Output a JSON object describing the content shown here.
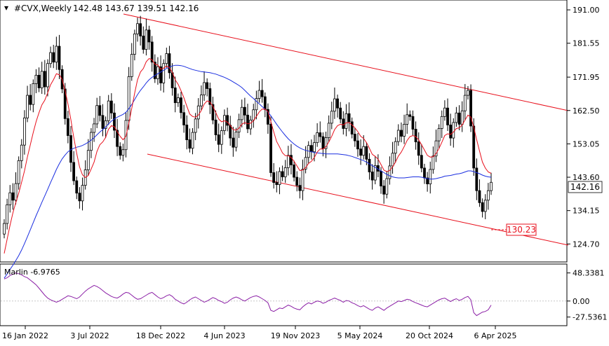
{
  "header": {
    "symbol": "#CVX,Weekly",
    "ohlc": "142.48 143.67 139.51 142.16"
  },
  "indicator": {
    "label": "Marlin -6.9765",
    "levels": [
      "48.3381",
      "0.00",
      "-27.5361"
    ]
  },
  "price_axis": {
    "ticks": [
      "191.00",
      "181.55",
      "171.95",
      "162.50",
      "153.05",
      "143.60",
      "134.15",
      "124.70"
    ],
    "current_price": "142.16",
    "target_label": "130.23"
  },
  "time_axis": {
    "ticks": [
      "16 Jan 2022",
      "3 Jul 2022",
      "18 Dec 2022",
      "4 Jun 2023",
      "19 Nov 2023",
      "5 May 2024",
      "20 Oct 2024",
      "6 Apr 2025"
    ]
  },
  "colors": {
    "candles": "#000000",
    "ma_fast": "#e8101c",
    "ma_slow": "#1a2ee0",
    "channel": "#e8101c",
    "oscillator": "#8b1fa6",
    "grid_line": "#c8c8c8"
  },
  "chart_data": {
    "type": "candlestick",
    "title": "#CVX,Weekly",
    "ylim": [
      120,
      193
    ],
    "oscillator_ylim": [
      -40,
      60
    ],
    "close": [
      130.5,
      135.8,
      139.2,
      137.1,
      141.8,
      148.3,
      152.7,
      160.4,
      166.8,
      164.2,
      170.1,
      172.5,
      168.9,
      173.6,
      169.2,
      175.8,
      178.9,
      176.2,
      180.7,
      174.1,
      168.6,
      160.2,
      155.4,
      147.8,
      142.6,
      139.1,
      136.9,
      141.3,
      145.7,
      151.2,
      156.3,
      158.7,
      163.9,
      161.1,
      157.4,
      159.6,
      165.2,
      161.8,
      156.9,
      152.3,
      149.8,
      151.4,
      159.7,
      172.1,
      178.4,
      184.2,
      187.1,
      183.6,
      179.8,
      185.3,
      181.9,
      176.2,
      171.5,
      174.9,
      170.3,
      175.8,
      178.6,
      173.2,
      168.9,
      164.7,
      166.1,
      161.9,
      158.4,
      154.2,
      151.8,
      156.3,
      160.1,
      163.8,
      166.9,
      170.4,
      168.7,
      164.2,
      159.8,
      155.6,
      152.9,
      156.8,
      161.1,
      158.3,
      154.7,
      152.1,
      156.4,
      159.9,
      163.4,
      161.2,
      157.3,
      159.8,
      162.7,
      165.9,
      168.2,
      166.4,
      162.8,
      158.6,
      144.9,
      142.1,
      141.5,
      145.2,
      143.7,
      146.3,
      149.8,
      147.1,
      143.6,
      141.3,
      139.8,
      145.9,
      149.2,
      152.6,
      150.8,
      153.4,
      156.2,
      155.1,
      151.7,
      154.8,
      158.9,
      162.3,
      165.8,
      163.2,
      160.1,
      157.4,
      161.6,
      159.3,
      155.8,
      153.9,
      151.6,
      149.8,
      152.3,
      148.7,
      145.1,
      142.8,
      146.9,
      145.3,
      141.1,
      138.8,
      143.2,
      146.8,
      150.4,
      153.7,
      156.9,
      155.2,
      158.6,
      161.3,
      160.8,
      157.2,
      153.6,
      149.8,
      146.2,
      143.4,
      141.7,
      145.8,
      149.6,
      153.9,
      157.4,
      160.8,
      163.2,
      158.4,
      154.7,
      159.1,
      161.8,
      158.6,
      162.4,
      166.8,
      168.2,
      158.1,
      146.2,
      139.8,
      136.4,
      133.9,
      137.1,
      139.8,
      142.16
    ],
    "ma_fast": [
      122,
      126,
      130,
      133.5,
      136.4,
      139.1,
      142.2,
      145.4,
      149.3,
      152.8,
      156.2,
      159.3,
      161.9,
      164.1,
      165.4,
      167.5,
      169.8,
      171.2,
      172.9,
      172.6,
      171.3,
      168.1,
      164.3,
      159.9,
      154.9,
      150.4,
      146.5,
      144.3,
      143.5,
      144.1,
      145.9,
      147.9,
      150.9,
      152.8,
      153.6,
      154.9,
      157.2,
      158.2,
      157.9,
      156.5,
      155.2,
      154.2,
      155.2,
      158.9,
      163.1,
      167.4,
      171.2,
      173.4,
      174.4,
      176.3,
      177.2,
      176.9,
      175.6,
      175.4,
      174.2,
      174.5,
      175.1,
      174.6,
      173.3,
      171.2,
      169.9,
      168.1,
      166.1,
      163.7,
      161.5,
      160.8,
      160.6,
      161.2,
      162.5,
      164.3,
      165.2,
      164.9,
      163.7,
      161.9,
      160.1,
      159.3,
      159.6,
      159.2,
      158.3,
      157.1,
      156.9,
      157.5,
      158.6,
      159.1,
      158.7,
      158.9,
      159.6,
      160.8,
      162.1,
      162.9,
      162.9,
      162.2,
      159.4,
      156.4,
      153.7,
      152.2,
      150.5,
      149.7,
      149.7,
      149.2,
      148.1,
      146.8,
      145.5,
      145.6,
      146.3,
      147.5,
      148.1,
      149.2,
      150.7,
      151.6,
      151.6,
      152.2,
      153.6,
      155.2,
      157.1,
      158.2,
      158.6,
      158.4,
      159,
      159.1,
      158.4,
      157.6,
      156.5,
      155.2,
      154.6,
      153.4,
      151.8,
      150.1,
      149.5,
      148.7,
      147.2,
      145.6,
      145.2,
      145.5,
      146.5,
      147.9,
      149.6,
      150.7,
      152.3,
      154,
      155.1,
      155.4,
      155.1,
      154.2,
      152.8,
      151.3,
      149.8,
      149.3,
      149.4,
      150.3,
      151.7,
      153.5,
      155.4,
      155.9,
      155.7,
      156.4,
      157.4,
      157.6,
      158.4,
      159.8,
      161.2,
      160.6,
      157.8,
      154.3,
      151,
      147.9,
      146.2,
      145.1,
      144.7
    ],
    "ma_slow": [
      115,
      116.2,
      117.5,
      118.7,
      120,
      121.4,
      123,
      124.8,
      126.7,
      128.7,
      130.7,
      132.7,
      134.6,
      136.5,
      138.3,
      140.2,
      142.1,
      143.9,
      145.8,
      147.4,
      148.8,
      149.9,
      150.8,
      151.4,
      151.8,
      152.1,
      152.3,
      152.6,
      153,
      153.5,
      154.1,
      154.8,
      155.6,
      156.4,
      157.1,
      157.8,
      158.7,
      159.5,
      160.1,
      160.6,
      161,
      161.4,
      162,
      163,
      164.2,
      165.6,
      167,
      168.2,
      169.2,
      170.3,
      171.2,
      171.9,
      172.4,
      172.9,
      173.4,
      173.9,
      174.4,
      174.8,
      175.1,
      175.3,
      175.3,
      175.2,
      175,
      174.7,
      174.4,
      174.1,
      173.9,
      173.7,
      173.5,
      173.4,
      173.3,
      173.2,
      173,
      172.8,
      172.5,
      172.2,
      171.9,
      171.5,
      171.1,
      170.6,
      170.1,
      169.6,
      169,
      168.2,
      167.4,
      166.6,
      165.9,
      165.1,
      164.4,
      163.6,
      162.9,
      162.1,
      161,
      159.8,
      158.6,
      157.5,
      156.4,
      155.4,
      154.5,
      153.7,
      153,
      152.4,
      151.9,
      151.5,
      151.2,
      151,
      150.8,
      150.6,
      150.5,
      150.4,
      150.3,
      150.2,
      150.2,
      150.2,
      150.2,
      150.2,
      150.1,
      150,
      149.9,
      149.7,
      149.5,
      149.2,
      148.9,
      148.6,
      148.3,
      147.9,
      147.4,
      146.9,
      146.4,
      145.9,
      145.4,
      144.9,
      144.4,
      144,
      143.7,
      143.5,
      143.4,
      143.4,
      143.4,
      143.5,
      143.6,
      143.7,
      143.7,
      143.7,
      143.6,
      143.4,
      143.2,
      143.1,
      143.1,
      143.2,
      143.4,
      143.6,
      143.9,
      144,
      144.1,
      144.3,
      144.5,
      144.6,
      144.8,
      145.1,
      145.4,
      145.4,
      145.2,
      144.9,
      144.6,
      144.2,
      143.9,
      143.7,
      143.6
    ],
    "oscillator": [
      38,
      40,
      44,
      46,
      48.3,
      47,
      45,
      42,
      40,
      36,
      32,
      28,
      22,
      16,
      10,
      5,
      2,
      0,
      -2,
      0,
      3,
      6,
      9,
      8,
      6,
      4,
      7,
      12,
      17,
      21,
      24,
      27,
      25,
      22,
      18,
      14,
      11,
      8,
      6,
      5,
      8,
      12,
      15,
      14,
      10,
      6,
      3,
      4,
      7,
      10,
      13,
      15,
      11,
      7,
      4,
      6,
      9,
      11,
      8,
      3,
      0,
      -3,
      -5,
      -2,
      2,
      5,
      7,
      4,
      1,
      -2,
      0,
      3,
      6,
      4,
      1,
      -1,
      -4,
      -2,
      2,
      5,
      7,
      5,
      2,
      0,
      3,
      6,
      8,
      9,
      7,
      4,
      1,
      -3,
      -16,
      -18,
      -15,
      -12,
      -13,
      -10,
      -7,
      -9,
      -12,
      -14,
      -15,
      -10,
      -6,
      -3,
      -5,
      -2,
      0,
      -1,
      -4,
      -2,
      1,
      3,
      5,
      3,
      1,
      -2,
      1,
      0,
      -3,
      -5,
      -8,
      -10,
      -8,
      -11,
      -14,
      -16,
      -12,
      -10,
      -13,
      -16,
      -12,
      -9,
      -6,
      -3,
      0,
      -1,
      1,
      3,
      2,
      -1,
      -3,
      -5,
      -7,
      -9,
      -10,
      -7,
      -4,
      -1,
      2,
      4,
      5,
      2,
      -1,
      2,
      4,
      1,
      3,
      6,
      8,
      2,
      -20,
      -25,
      -22,
      -19,
      -18,
      -15,
      -7
    ]
  }
}
